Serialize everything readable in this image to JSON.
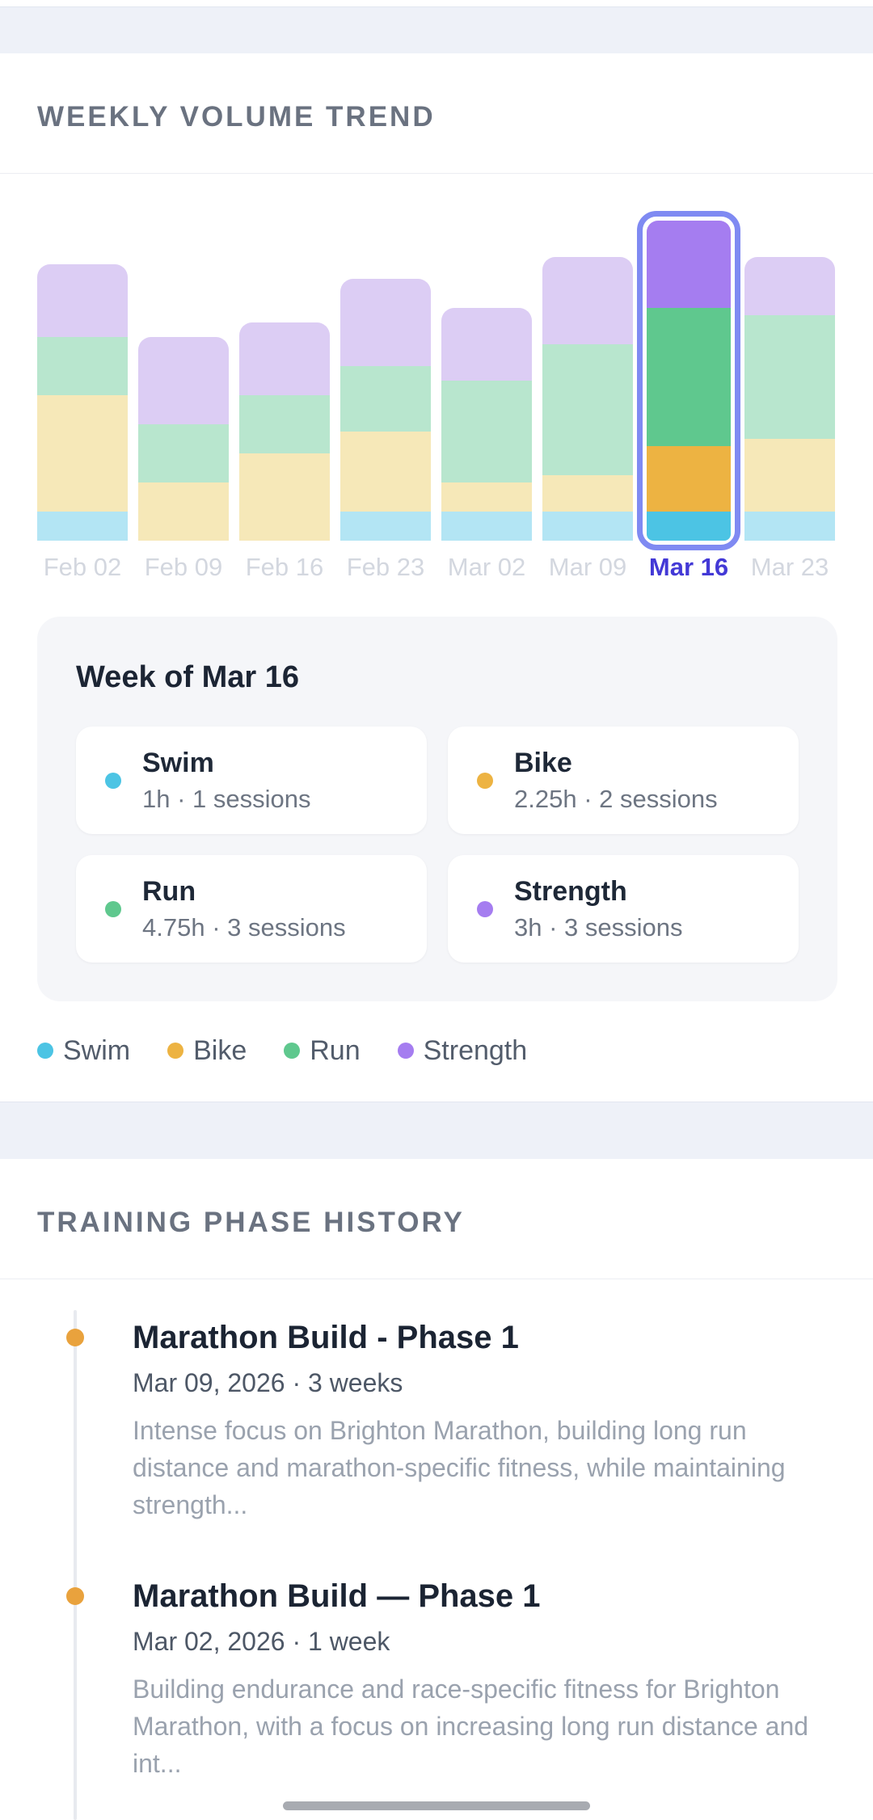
{
  "weekly_volume": {
    "section_title": "WEEKLY VOLUME TREND",
    "chart_data": {
      "type": "bar",
      "stacked": true,
      "unit": "hours",
      "categories": [
        "Feb 02",
        "Feb 09",
        "Feb 16",
        "Feb 23",
        "Mar 02",
        "Mar 09",
        "Mar 16",
        "Mar 23"
      ],
      "series": [
        {
          "name": "Swim",
          "values": [
            1,
            0,
            0,
            1,
            1,
            1,
            1,
            1
          ]
        },
        {
          "name": "Bike",
          "values": [
            4,
            2,
            3,
            2.75,
            1,
            1.25,
            2.25,
            2.5
          ]
        },
        {
          "name": "Run",
          "values": [
            2,
            2,
            2,
            2.25,
            3.5,
            4.5,
            4.75,
            4.25
          ]
        },
        {
          "name": "Strength",
          "values": [
            2.5,
            3,
            2.5,
            3,
            2.5,
            3,
            3,
            2
          ]
        }
      ],
      "selected_index": 6,
      "selected_category": "Mar 16",
      "ylim": [
        0,
        11.5
      ],
      "legend_position": "bottom",
      "grid": false
    },
    "colors": {
      "muted": {
        "Swim": "#b3e5f4",
        "Bike": "#f6e8b8",
        "Run": "#b8e6ce",
        "Strength": "#dccdf4"
      },
      "vivid": {
        "Swim": "#4cc4e4",
        "Bike": "#edb342",
        "Run": "#5fc88e",
        "Strength": "#a57df0"
      },
      "selection_ring": "#7f8af2",
      "selected_label": "#4339d6"
    },
    "selected_week": {
      "title": "Week of Mar 16",
      "stats": [
        {
          "sport": "Swim",
          "detail": "1h · 1 sessions"
        },
        {
          "sport": "Bike",
          "detail": "2.25h · 2 sessions"
        },
        {
          "sport": "Run",
          "detail": "4.75h · 3 sessions"
        },
        {
          "sport": "Strength",
          "detail": "3h · 3 sessions"
        }
      ]
    },
    "legend": [
      "Swim",
      "Bike",
      "Run",
      "Strength"
    ]
  },
  "phase_history": {
    "section_title": "TRAINING PHASE HISTORY",
    "dot_color": "#e9a23d",
    "entries": [
      {
        "title": "Marathon Build - Phase 1",
        "meta": "Mar 09, 2026 · 3 weeks",
        "description": "Intense focus on Brighton Marathon, building long run distance and marathon-specific fitness, while maintaining strength..."
      },
      {
        "title": "Marathon Build — Phase 1",
        "meta": "Mar 02, 2026 · 1 week",
        "description": "Building endurance and race-specific fitness for Brighton Marathon, with a focus on increasing long run distance and int..."
      }
    ]
  }
}
